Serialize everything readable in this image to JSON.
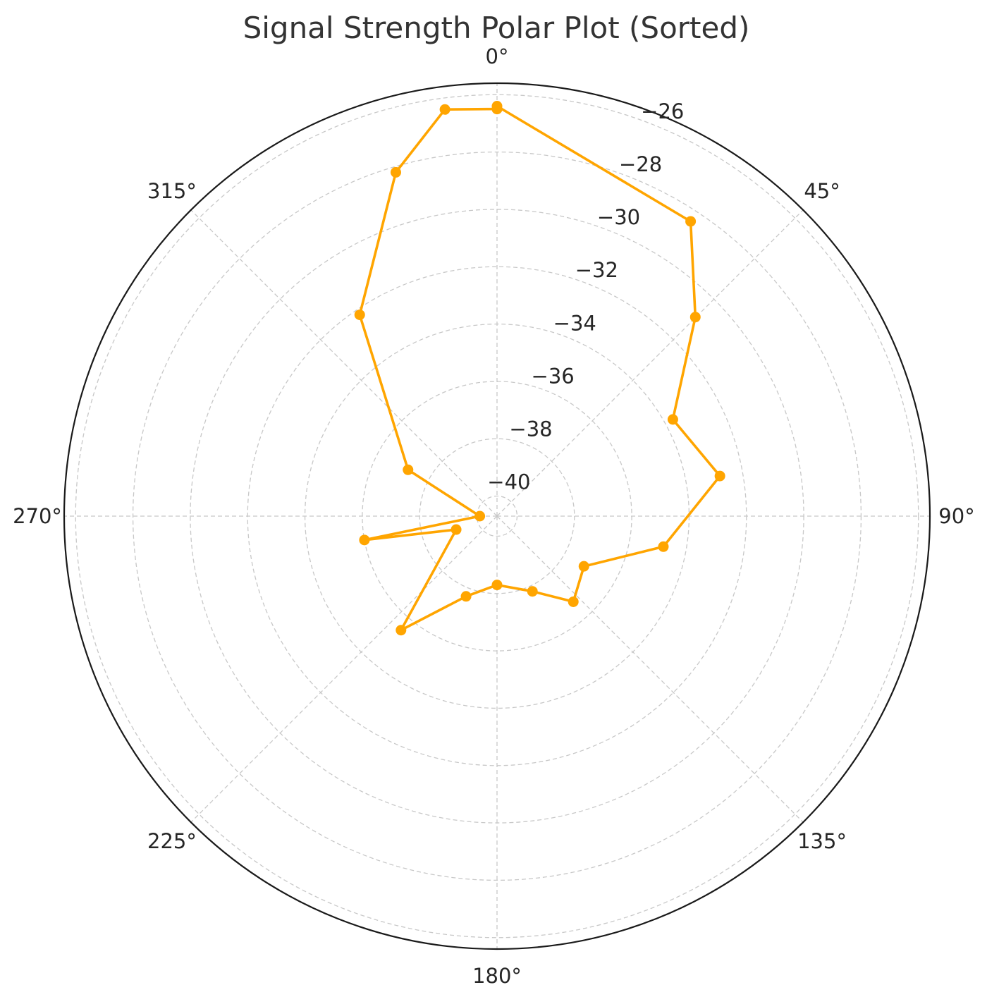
{
  "chart_data": {
    "type": "polar-line",
    "title": "Signal Strength Polar Plot (Sorted)",
    "theta_unit": "degrees",
    "theta_zero": "top",
    "theta_direction": "clockwise",
    "theta_ticks": [
      "0°",
      "45°",
      "90°",
      "135°",
      "180°",
      "225°",
      "270°",
      "315°"
    ],
    "theta_tick_values": [
      0,
      45,
      90,
      135,
      180,
      225,
      270,
      315
    ],
    "r_ticks": [
      "−40",
      "−38",
      "−36",
      "−34",
      "−32",
      "−30",
      "−28",
      "−26"
    ],
    "r_tick_values": [
      -40,
      -38,
      -36,
      -34,
      -32,
      -30,
      -28,
      -26
    ],
    "r_range": [
      -40.7,
      -25.6
    ],
    "grid": true,
    "series": [
      {
        "color": "#FFA500",
        "marker": "circle",
        "points": [
          {
            "theta": 0.0,
            "r": -26.5
          },
          {
            "theta": 0.0,
            "r": -26.4
          },
          {
            "theta": 33.3,
            "r": -28.4
          },
          {
            "theta": 44.9,
            "r": -30.9
          },
          {
            "theta": 61.2,
            "r": -33.7
          },
          {
            "theta": 79.8,
            "r": -32.8
          },
          {
            "theta": 100.4,
            "r": -34.8
          },
          {
            "theta": 120.0,
            "r": -37.2
          },
          {
            "theta": 138.3,
            "r": -36.7
          },
          {
            "theta": 154.8,
            "r": -37.8
          },
          {
            "theta": 180.0,
            "r": -38.3
          },
          {
            "theta": 201.1,
            "r": -37.7
          },
          {
            "theta": 220.1,
            "r": -35.5
          },
          {
            "theta": 251.8,
            "r": -39.2
          },
          {
            "theta": 259.8,
            "r": -36.0
          },
          {
            "theta": 270.0,
            "r": -40.1
          },
          {
            "theta": 297.5,
            "r": -37.2
          },
          {
            "theta": 325.7,
            "r": -32.2
          },
          {
            "theta": 343.6,
            "r": -28.2
          },
          {
            "theta": 352.7,
            "r": -26.4
          },
          {
            "theta": 360.0,
            "r": -26.5
          }
        ]
      }
    ]
  }
}
